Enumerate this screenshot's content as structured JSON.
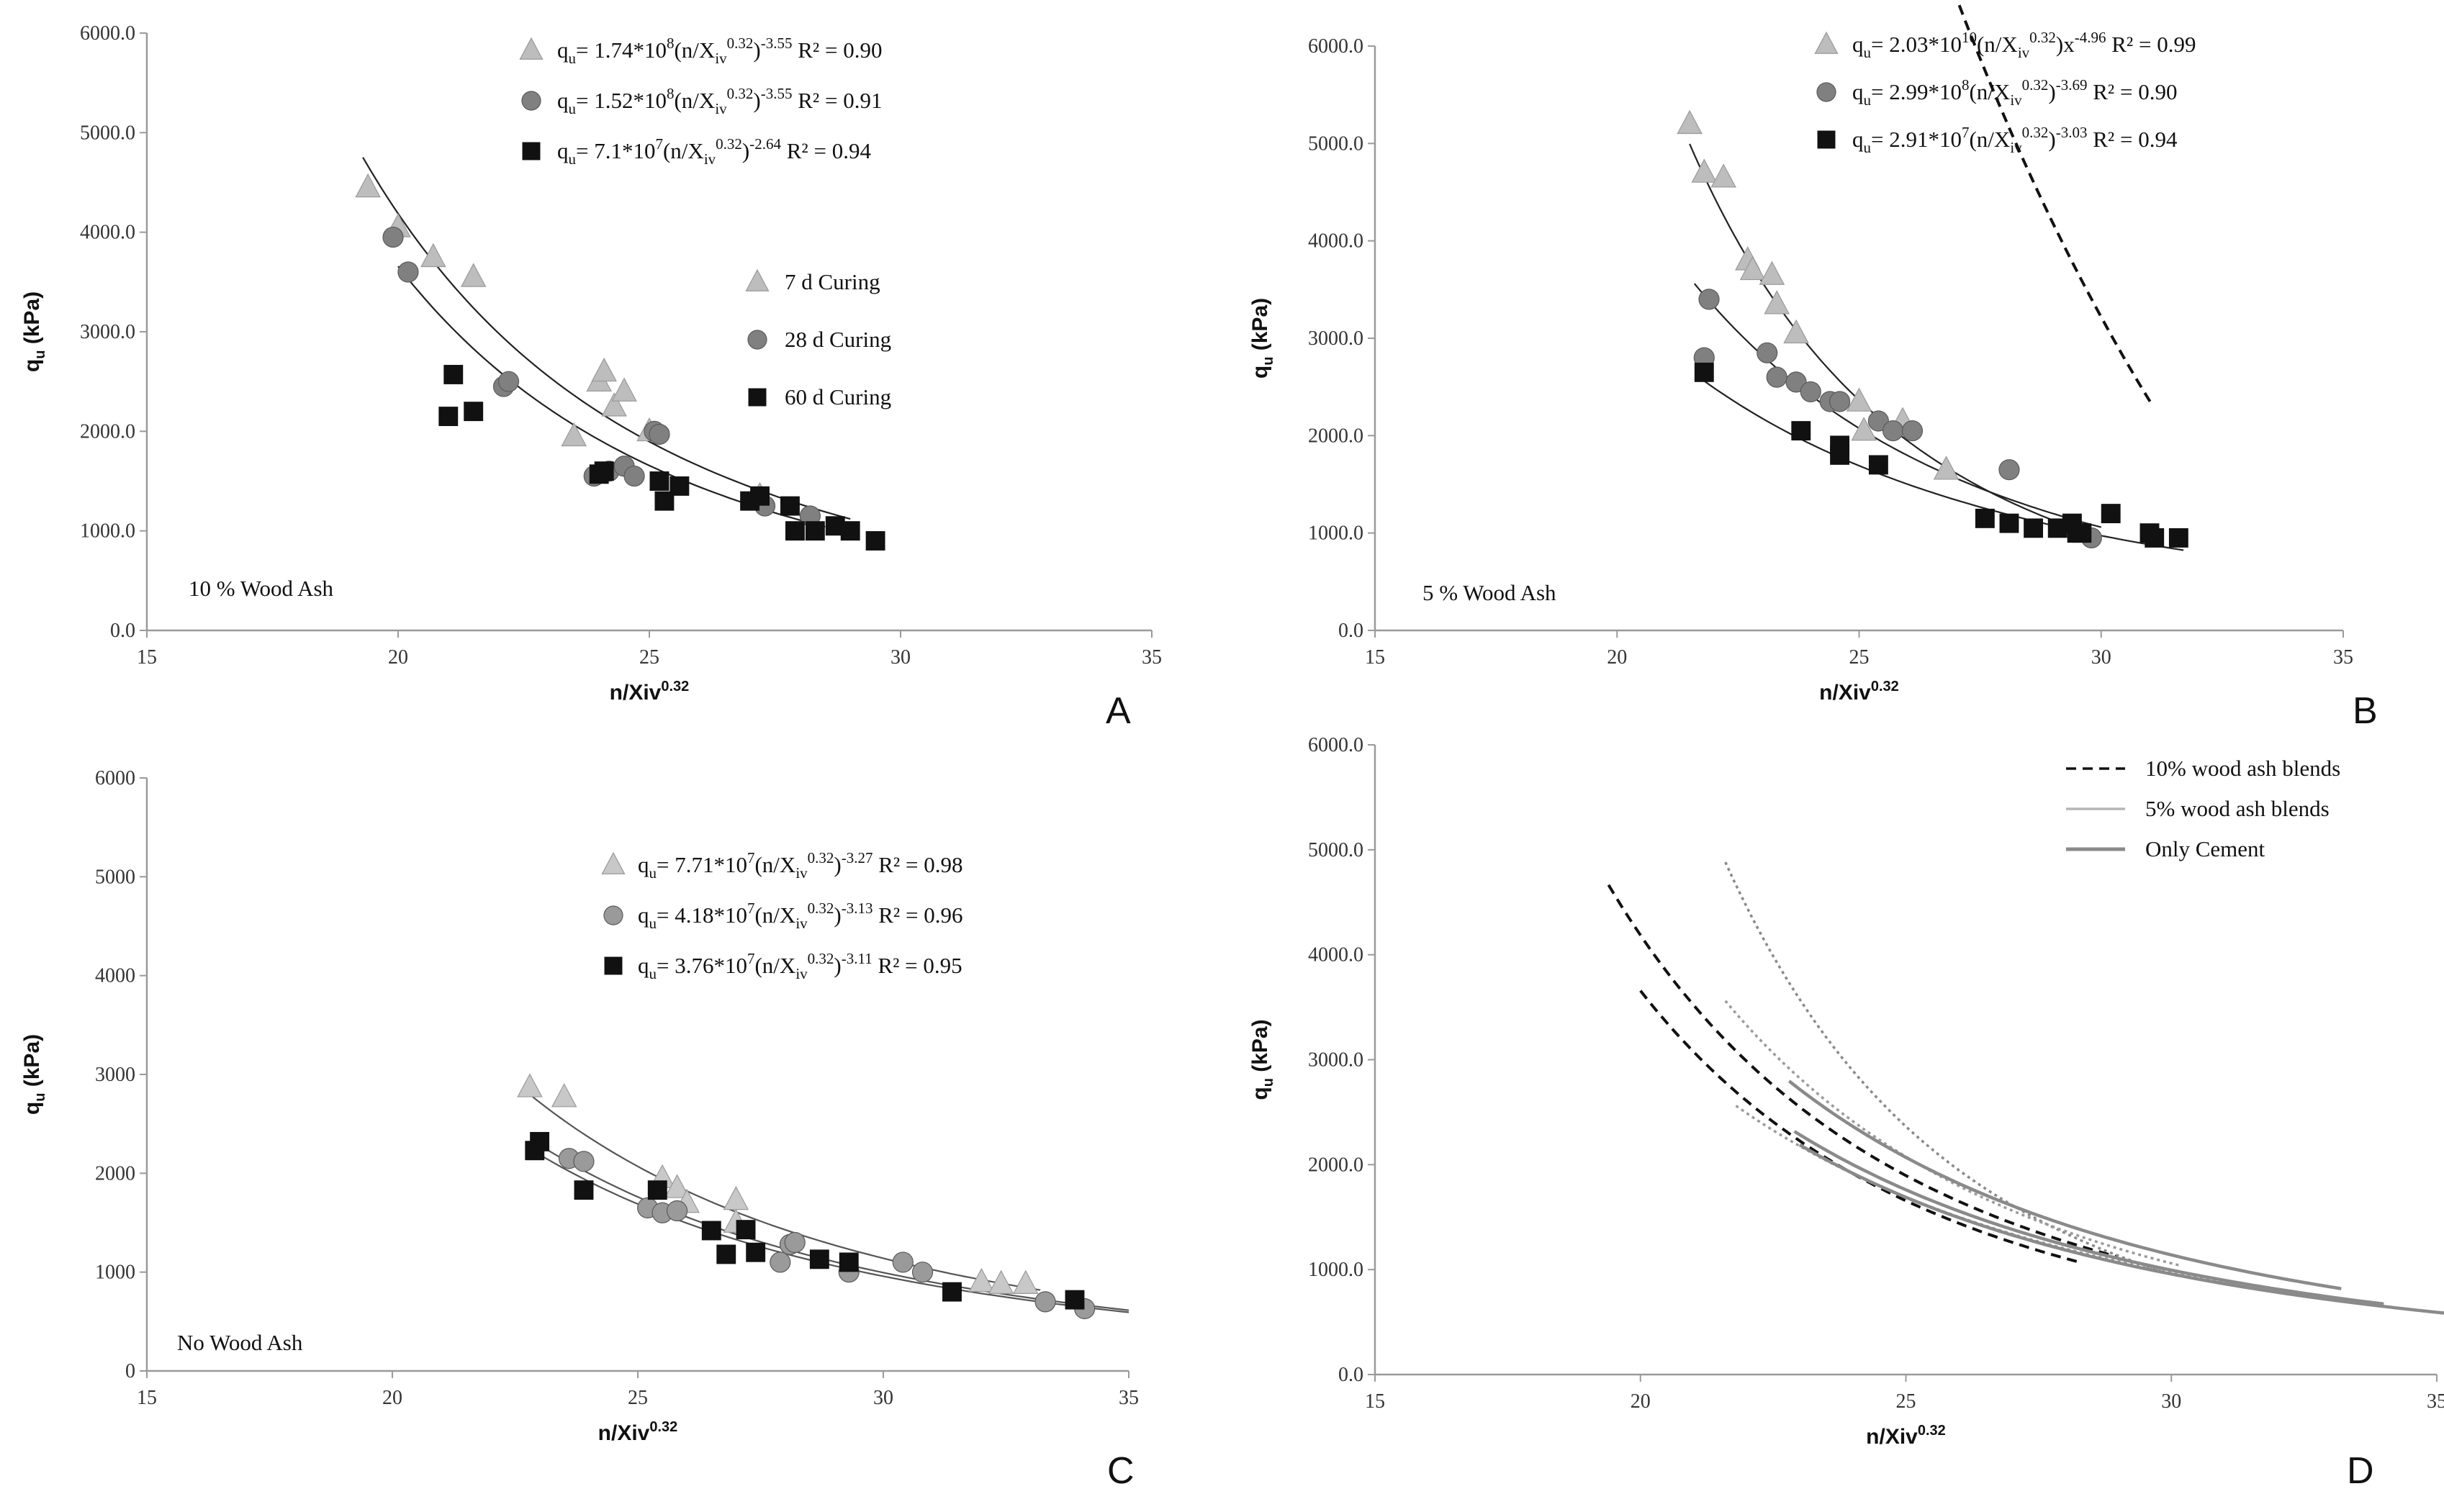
{
  "chart_data": [
    {
      "id": "A",
      "type": "scatter",
      "panel_letter": "A",
      "title": "",
      "xlabel": "n/Xiv",
      "xlabel_sup": "0.32",
      "ylabel": "q",
      "ylabel_sub": "u",
      "ylabel_unit": " (kPa)",
      "xlim": [
        15,
        35
      ],
      "ylim": [
        0,
        6000
      ],
      "xticks": [
        "15",
        "20",
        "25",
        "30",
        "35"
      ],
      "yticks": [
        "0.0",
        "1000.0",
        "2000.0",
        "3000.0",
        "4000.0",
        "5000.0",
        "6000.0"
      ],
      "note": "10 % Wood Ash",
      "equations": [
        {
          "marker": "triangle",
          "lhs": "q",
          "lhs_sub": "u",
          "pre": "= 1.74*10",
          "exp1": "8",
          "mid": "(n/X",
          "sub": "iv",
          "exp2": "0.32",
          "close": ")",
          "exp3": "-3.55",
          "r2": " R² = 0.90"
        },
        {
          "marker": "circle",
          "lhs": "q",
          "lhs_sub": "u",
          "pre": "= 1.52*10",
          "exp1": "8",
          "mid": "(n/X",
          "sub": "iv",
          "exp2": "0.32",
          "close": ")",
          "exp3": "-3.55",
          "r2": " R² = 0.91"
        },
        {
          "marker": "square",
          "lhs": "q",
          "lhs_sub": "u",
          "pre": "= 7.1*10",
          "exp1": "7",
          "mid": "(n/X",
          "sub": "iv",
          "exp2": "0.32",
          "close": ")",
          "exp3": "-2.64",
          "r2": " R² = 0.94"
        }
      ],
      "legend": [
        "7 d Curing",
        "28 d Curing",
        "60 d Curing"
      ],
      "series": [
        {
          "name": "7 d Curing",
          "marker": "triangle",
          "color": "#bdbdbd",
          "x": [
            19.4,
            20.0,
            20.7,
            21.5,
            23.5,
            24.0,
            24.1,
            24.3,
            24.5,
            25.0,
            27.2
          ],
          "y": [
            4450,
            4050,
            3750,
            3550,
            1950,
            2500,
            2600,
            2250,
            2400,
            2000,
            1350
          ]
        },
        {
          "name": "28 d Curing",
          "marker": "circle",
          "color": "#808080",
          "x": [
            19.9,
            20.2,
            22.1,
            22.2,
            23.9,
            24.2,
            24.5,
            24.7,
            25.1,
            25.2,
            27.3,
            28.2
          ],
          "y": [
            3950,
            3600,
            2450,
            2500,
            1550,
            1600,
            1650,
            1550,
            2000,
            1970,
            1250,
            1150
          ]
        },
        {
          "name": "60 d Curing",
          "marker": "square",
          "color": "#111111",
          "x": [
            21.0,
            21.1,
            21.5,
            24.0,
            24.1,
            25.2,
            25.3,
            25.6,
            27.0,
            27.2,
            27.8,
            27.9,
            28.3,
            28.7,
            29.0,
            29.5
          ],
          "y": [
            2150,
            2570,
            2200,
            1570,
            1600,
            1500,
            1300,
            1450,
            1300,
            1350,
            1250,
            1000,
            1000,
            1050,
            1000,
            900
          ]
        }
      ],
      "fits": [
        {
          "name": "7 d",
          "a": 174000000.0,
          "b": -3.55,
          "x_range": [
            19.3,
            29.0
          ]
        },
        {
          "name": "28 d",
          "a": 152000000.0,
          "b": -3.55,
          "x_range": [
            20.0,
            28.5
          ]
        },
        {
          "name": "60 d",
          "a": 71000000.0,
          "b": -2.64,
          "x_range": [
            21.0,
            29.5
          ]
        }
      ]
    },
    {
      "id": "B",
      "type": "scatter",
      "panel_letter": "B",
      "title": "",
      "xlabel": "n/Xiv",
      "xlabel_sup": "0.32",
      "ylabel": "q",
      "ylabel_sub": "u",
      "ylabel_unit": " (kPa)",
      "xlim": [
        15,
        35
      ],
      "ylim": [
        0,
        6000
      ],
      "xticks": [
        "15",
        "20",
        "25",
        "30",
        "35"
      ],
      "yticks": [
        "0.0",
        "1000.0",
        "2000.0",
        "3000.0",
        "4000.0",
        "5000.0",
        "6000.0"
      ],
      "note": "5 % Wood Ash",
      "equations": [
        {
          "marker": "triangle",
          "lhs": "q",
          "lhs_sub": "u",
          "pre": "= 2.03*10",
          "exp1": "10",
          "mid": "(n/X",
          "sub": "iv",
          "exp2": "0.32",
          "close": ")x",
          "exp3": "-4.96",
          "r2": "  R² = 0.99"
        },
        {
          "marker": "circle",
          "lhs": "q",
          "lhs_sub": "u",
          "pre": "= 2.99*10",
          "exp1": "8",
          "mid": "(n/X",
          "sub": "iv",
          "exp2": "0.32",
          "close": ")",
          "exp3": "-3.69",
          "r2": "  R² = 0.90"
        },
        {
          "marker": "square",
          "lhs": "q",
          "lhs_sub": "u",
          "pre": "= 2.91*10",
          "exp1": "7",
          "mid": "(n/X",
          "sub": "iv",
          "exp2": "0.32",
          "close": ")",
          "exp3": "-3.03",
          "r2": " R² = 0.94"
        }
      ],
      "series": [
        {
          "name": "7 d Curing",
          "marker": "triangle",
          "color": "#bdbdbd",
          "x": [
            21.5,
            21.8,
            22.2,
            22.7,
            22.8,
            23.2,
            23.3,
            23.7,
            25.0,
            25.1,
            25.9,
            26.8
          ],
          "y": [
            5200,
            4700,
            4650,
            3800,
            3700,
            3650,
            3350,
            3050,
            2350,
            2050,
            2150,
            1650
          ]
        },
        {
          "name": "28 d Curing",
          "marker": "circle",
          "color": "#808080",
          "x": [
            21.8,
            21.9,
            23.1,
            23.3,
            23.7,
            24.0,
            24.4,
            24.6,
            25.4,
            25.7,
            26.1,
            28.1,
            29.8
          ],
          "y": [
            2800,
            3400,
            2850,
            2600,
            2550,
            2450,
            2350,
            2350,
            2150,
            2050,
            2050,
            1650,
            950
          ]
        },
        {
          "name": "60 d Curing",
          "marker": "square",
          "color": "#111111",
          "x": [
            21.8,
            23.8,
            24.6,
            24.6,
            25.4,
            27.6,
            28.1,
            28.6,
            29.1,
            29.4,
            29.5,
            29.6,
            30.2,
            31.0,
            31.1,
            31.6
          ],
          "y": [
            2650,
            2050,
            1900,
            1800,
            1700,
            1150,
            1100,
            1050,
            1050,
            1100,
            1000,
            1000,
            1200,
            1000,
            950,
            950
          ]
        }
      ],
      "fits": [
        {
          "name": "7 d",
          "a": 20300000000.0,
          "b": -4.96,
          "x_range": [
            21.5,
            29.8
          ]
        },
        {
          "name": "28 d",
          "a": 299000000.0,
          "b": -3.69,
          "x_range": [
            21.6,
            30.0
          ]
        },
        {
          "name": "60 d",
          "a": 29100000.0,
          "b": -3.03,
          "x_range": [
            21.8,
            31.7
          ]
        }
      ]
    },
    {
      "id": "C",
      "type": "scatter",
      "panel_letter": "C",
      "title": "",
      "xlabel": "n/Xiv",
      "xlabel_sup": "0.32",
      "ylabel": "q",
      "ylabel_sub": "u",
      "ylabel_unit": " (kPa)",
      "xlim": [
        15,
        35
      ],
      "ylim": [
        0,
        6000
      ],
      "xticks": [
        "15",
        "20",
        "25",
        "30",
        "35"
      ],
      "yticks": [
        "0",
        "1000",
        "2000",
        "3000",
        "4000",
        "5000",
        "6000"
      ],
      "note": "No Wood Ash",
      "equations": [
        {
          "marker": "triangle",
          "lhs": "q",
          "lhs_sub": "u",
          "pre": "= 7.71*10",
          "exp1": "7",
          "mid": "(n/X",
          "sub": "iv",
          "exp2": "0.32",
          "close": ")",
          "exp3": "-3.27",
          "r2": " R² = 0.98"
        },
        {
          "marker": "circle",
          "lhs": "q",
          "lhs_sub": "u",
          "pre": "= 4.18*10",
          "exp1": "7",
          "mid": "(n/X",
          "sub": "iv",
          "exp2": "0.32",
          "close": ")",
          "exp3": "-3.13",
          "r2": " R² = 0.96"
        },
        {
          "marker": "square",
          "lhs": "q",
          "lhs_sub": "u",
          "pre": "= 3.76*10",
          "exp1": "7",
          "mid": "(n/X",
          "sub": "iv",
          "exp2": "0.32",
          "close": ")",
          "exp3": "-3.11",
          "r2": " R² = 0.95"
        }
      ],
      "series": [
        {
          "name": "7 d Curing",
          "marker": "triangle",
          "color": "#c8c8c8",
          "x": [
            22.8,
            23.5,
            25.5,
            25.8,
            26.0,
            27.0,
            27.0,
            32.0,
            32.4,
            32.9
          ],
          "y": [
            2870,
            2770,
            1950,
            1850,
            1700,
            1730,
            1500,
            900,
            880,
            880
          ]
        },
        {
          "name": "28 d Curing",
          "marker": "circle",
          "color": "#9a9a9a",
          "x": [
            23.6,
            23.9,
            25.2,
            25.5,
            25.8,
            27.9,
            28.1,
            28.2,
            29.3,
            30.4,
            30.8,
            33.3,
            34.1
          ],
          "y": [
            2150,
            2120,
            1650,
            1600,
            1620,
            1100,
            1280,
            1300,
            1000,
            1100,
            1000,
            700,
            630
          ]
        },
        {
          "name": "60 d Curing",
          "marker": "square",
          "color": "#111111",
          "x": [
            22.9,
            23.0,
            23.9,
            25.4,
            26.5,
            26.8,
            27.2,
            27.4,
            28.7,
            29.3,
            31.4,
            33.9
          ],
          "y": [
            2230,
            2320,
            1830,
            1830,
            1420,
            1180,
            1430,
            1200,
            1130,
            1100,
            800,
            720
          ]
        }
      ],
      "fits": [
        {
          "name": "7 d",
          "a": 77100000.0,
          "b": -3.27,
          "x_range": [
            22.8,
            33.2
          ]
        },
        {
          "name": "28 d",
          "a": 41800000.0,
          "b": -3.13,
          "x_range": [
            23.0,
            35.0
          ]
        },
        {
          "name": "60 d",
          "a": 37600000.0,
          "b": -3.11,
          "x_range": [
            23.0,
            35.0
          ]
        }
      ]
    },
    {
      "id": "D",
      "type": "line",
      "panel_letter": "D",
      "title": "",
      "xlabel": "n/Xiv",
      "xlabel_sup": "0.32",
      "ylabel": "q",
      "ylabel_sub": "u",
      "ylabel_unit": " (kPa)",
      "xlim": [
        15,
        35
      ],
      "ylim": [
        0,
        6000
      ],
      "xticks": [
        "15",
        "20",
        "25",
        "30",
        "35"
      ],
      "yticks": [
        "0.0",
        "1000.0",
        "2000.0",
        "3000.0",
        "4000.0",
        "5000.0",
        "6000.0"
      ],
      "legend": [
        "10% wood ash blends",
        "5% wood ash blends",
        "Only Cement"
      ],
      "series": [
        {
          "name": "10% wood ash blends",
          "style": "dashed",
          "color": "#111111",
          "a": 174000000.0,
          "b": -3.55,
          "x_range": [
            19.4,
            29.0
          ]
        },
        {
          "name": "10% wood ash blends",
          "style": "dashed",
          "color": "#111111",
          "a": 152000000.0,
          "b": -3.55,
          "x_range": [
            20.0,
            28.3
          ]
        },
        {
          "name": "10% wood ash blends",
          "style": "dashed",
          "color": "#111111",
          "a": 71000000.0,
          "b": -2.64,
          "x_range": [
            21.1,
            29.6
          ]
        },
        {
          "name": "5% wood ash blends",
          "style": "dotted",
          "color": "#8a8a8a",
          "a": 20300000000.0,
          "b": -4.96,
          "x_range": [
            21.6,
            29.8
          ]
        },
        {
          "name": "5% wood ash blends",
          "style": "dotted",
          "color": "#9a9a9a",
          "a": 299000000.0,
          "b": -3.69,
          "x_range": [
            21.6,
            30.2
          ]
        },
        {
          "name": "5% wood ash blends",
          "style": "dotted",
          "color": "#9a9a9a",
          "a": 29100000.0,
          "b": -3.03,
          "x_range": [
            21.8,
            31.7
          ]
        },
        {
          "name": "Only Cement",
          "style": "solid",
          "color": "#8a8a8a",
          "a": 77100000.0,
          "b": -3.27,
          "x_range": [
            22.8,
            33.2
          ]
        },
        {
          "name": "Only Cement",
          "style": "solid",
          "color": "#8a8a8a",
          "a": 41800000.0,
          "b": -3.13,
          "x_range": [
            22.9,
            34.0
          ]
        },
        {
          "name": "Only Cement",
          "style": "solid",
          "color": "#8a8a8a",
          "a": 37600000.0,
          "b": -3.11,
          "x_range": [
            23.0,
            35.2
          ]
        }
      ]
    }
  ]
}
